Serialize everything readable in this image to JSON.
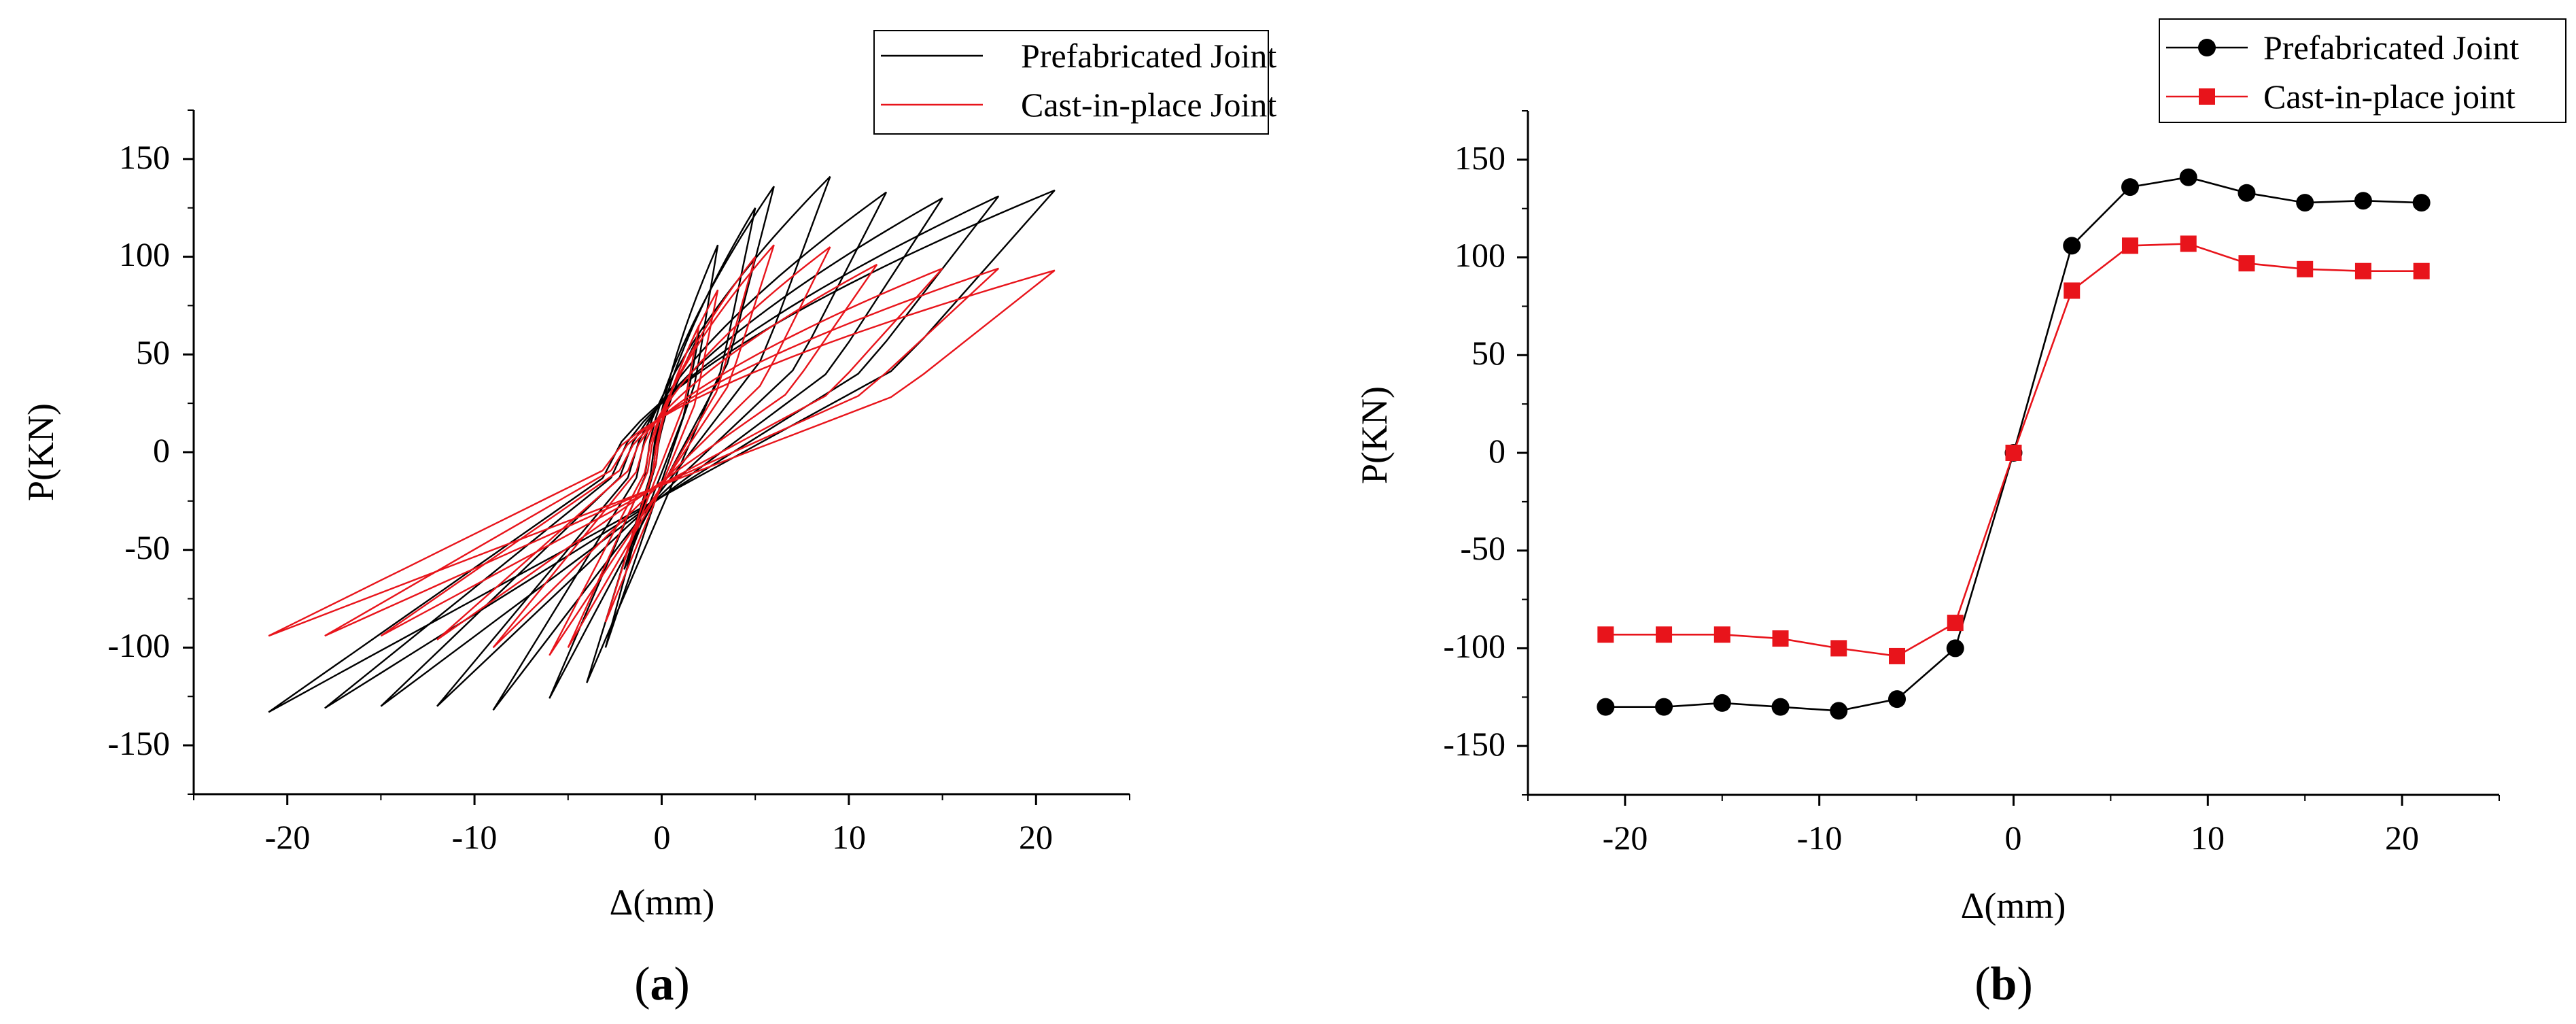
{
  "chart_data": [
    {
      "id": "a",
      "type": "line",
      "caption": {
        "open": "(",
        "letter": "a",
        "close": ")"
      },
      "xlabel": "Δ(mm)",
      "ylabel": "P(KN)",
      "xlim": [
        -25,
        25
      ],
      "ylim": [
        -175,
        175
      ],
      "xticks": [
        -20,
        -10,
        0,
        10,
        20
      ],
      "xtick_labels": [
        "-20",
        "-10",
        "0",
        "10",
        "20"
      ],
      "yticks": [
        -150,
        -100,
        -50,
        0,
        50,
        100,
        150
      ],
      "ytick_labels": [
        "-150",
        "-100",
        "-50",
        "0",
        "50",
        "100",
        "150"
      ],
      "legend": {
        "position": "top-right",
        "entries": [
          "Prefabricated Joint",
          "Cast-in-place Joint"
        ]
      },
      "series": [
        {
          "name": "Prefabricated Joint",
          "color": "#000000",
          "marker": "none",
          "loops": [
            {
              "xmax": 2,
              "pmax": 60,
              "xmin": -2,
              "pmin": -60
            },
            {
              "xmax": 3,
              "pmax": 106,
              "xmin": -3,
              "pmin": -100
            },
            {
              "xmax": 5,
              "pmax": 125,
              "xmin": -4,
              "pmin": -118
            },
            {
              "xmax": 6,
              "pmax": 136,
              "xmin": -6,
              "pmin": -126
            },
            {
              "xmax": 9,
              "pmax": 141,
              "xmin": -9,
              "pmin": -132
            },
            {
              "xmax": 12,
              "pmax": 133,
              "xmin": -12,
              "pmin": -130
            },
            {
              "xmax": 15,
              "pmax": 130,
              "xmin": -15,
              "pmin": -130
            },
            {
              "xmax": 18,
              "pmax": 131,
              "xmin": -18,
              "pmin": -131
            },
            {
              "xmax": 21,
              "pmax": 134,
              "xmin": -21,
              "pmin": -133
            }
          ]
        },
        {
          "name": "Cast-in-place Joint",
          "color": "#e8141b",
          "marker": "none",
          "loops": [
            {
              "xmax": 2,
              "pmax": 65,
              "xmin": -2,
              "pmin": -55
            },
            {
              "xmax": 3,
              "pmax": 83,
              "xmin": -3,
              "pmin": -87
            },
            {
              "xmax": 5,
              "pmax": 100,
              "xmin": -5,
              "pmin": -100
            },
            {
              "xmax": 6,
              "pmax": 106,
              "xmin": -6,
              "pmin": -104
            },
            {
              "xmax": 9,
              "pmax": 105,
              "xmin": -9,
              "pmin": -100
            },
            {
              "xmax": 11.5,
              "pmax": 96,
              "xmin": -12,
              "pmin": -96
            },
            {
              "xmax": 15,
              "pmax": 94,
              "xmin": -15,
              "pmin": -94
            },
            {
              "xmax": 18,
              "pmax": 94,
              "xmin": -18,
              "pmin": -94
            },
            {
              "xmax": 21,
              "pmax": 93,
              "xmin": -21,
              "pmin": -94
            }
          ]
        }
      ]
    },
    {
      "id": "b",
      "type": "line",
      "caption": {
        "open": "(",
        "letter": "b",
        "close": ")"
      },
      "xlabel": "Δ(mm)",
      "ylabel": "P(KN)",
      "xlim": [
        -25,
        25
      ],
      "ylim": [
        -175,
        175
      ],
      "xticks": [
        -20,
        -10,
        0,
        10,
        20
      ],
      "xtick_labels": [
        "-20",
        "-10",
        "0",
        "10",
        "20"
      ],
      "yticks": [
        -150,
        -100,
        -50,
        0,
        50,
        100,
        150
      ],
      "ytick_labels": [
        "-150",
        "-100",
        "-50",
        "0",
        "50",
        "100",
        "150"
      ],
      "legend": {
        "position": "top-right",
        "entries": [
          "Prefabricated Joint",
          "Cast-in-place joint"
        ]
      },
      "series": [
        {
          "name": "Prefabricated Joint",
          "color": "#000000",
          "marker": "circle",
          "x": [
            -21,
            -18,
            -15,
            -12,
            -9,
            -6,
            -3,
            0,
            3,
            6,
            9,
            12,
            15,
            18,
            21
          ],
          "y": [
            -130,
            -130,
            -128,
            -130,
            -132,
            -126,
            -100,
            0,
            106,
            136,
            141,
            133,
            128,
            129,
            128
          ]
        },
        {
          "name": "Cast-in-place joint",
          "color": "#e8141b",
          "marker": "square",
          "x": [
            -21,
            -18,
            -15,
            -12,
            -9,
            -6,
            -3,
            0,
            3,
            6,
            9,
            12,
            15,
            18,
            21
          ],
          "y": [
            -93,
            -93,
            -93,
            -95,
            -100,
            -104,
            -87,
            0,
            83,
            106,
            107,
            97,
            94,
            93,
            93
          ]
        }
      ]
    }
  ]
}
